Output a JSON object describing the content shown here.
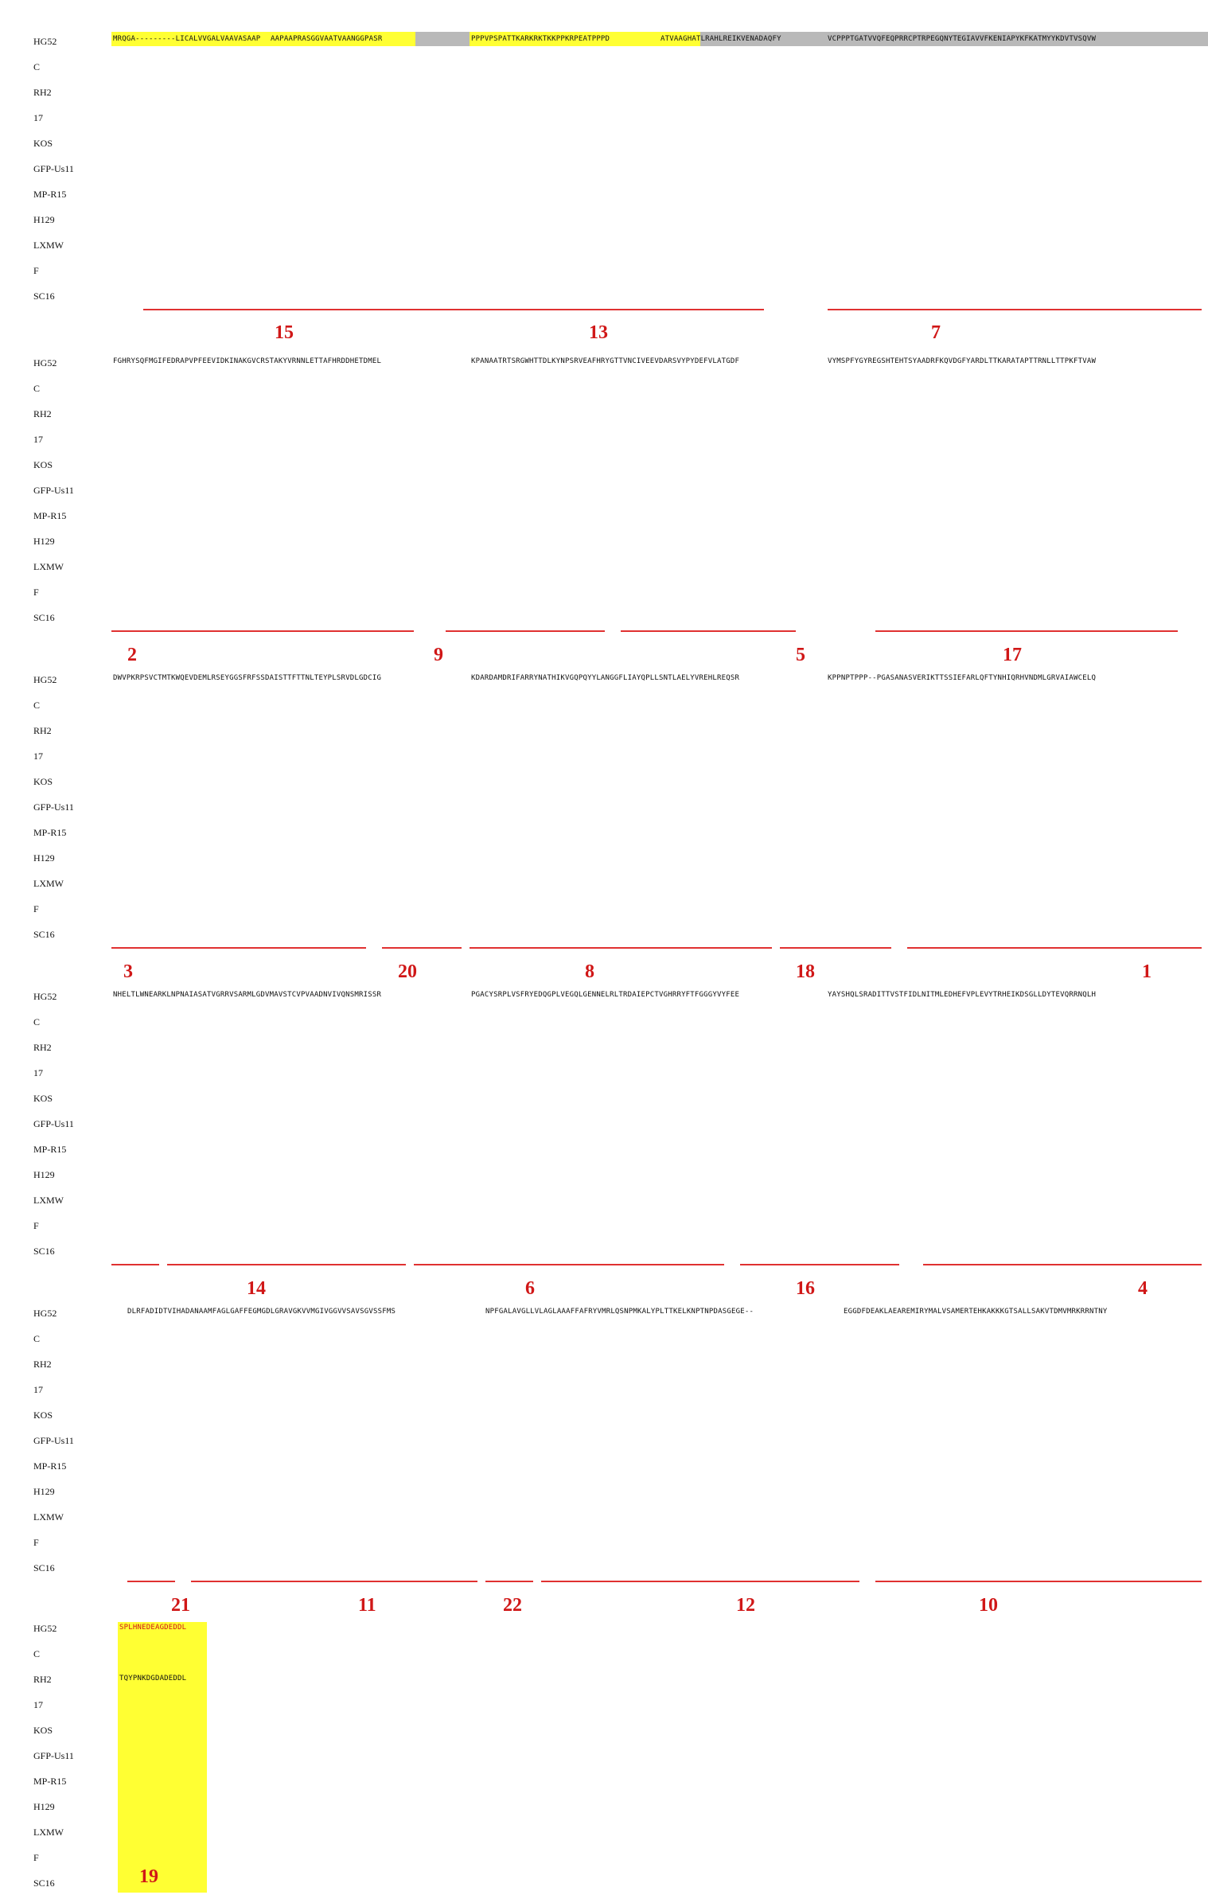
{
  "strains": [
    "HG52",
    "C",
    "RH2",
    "17",
    "KOS",
    "GFP-Us11",
    "MP-R15",
    "H129",
    "LXMW",
    "F",
    "SC16"
  ],
  "blocks": [
    {
      "seq_snippets": [
        "MRQGA---------LICALVVGALVAAVASAAP",
        "AAPAAPRASGGVAATVAANGGPASR",
        "PPPVPSPATTKARKRKTKKPPKRPEATPPPD",
        "ATVAAGHATLRAHLREIKVENADAQFY",
        "VCPPPTGATVVQFEQPRRCPTRPEGQNYTEGIAVVFKENIAPYKFKATMYYKDVTVSQVW"
      ],
      "regions": [
        "15",
        "13",
        "7"
      ]
    },
    {
      "seq_snippets": [
        "FGHRYSQFMGIFEDRAPVPFEEVIDKINAKGVCRSTAKYVRNNLETTAFHRDDHETDMEL",
        "KPANAATRTSRGWHTTDLKYNPSRVEAFHRYGTTVNCIVEEVDARSVYPYDEFVLATGDF",
        "VYMSPFYGYREGSHTEHTSYAADRFKQVDGFYARDLTTKARATAPTTRNLLTTPKFTVAW"
      ],
      "regions": [
        "2",
        "9",
        "5",
        "17"
      ]
    },
    {
      "seq_snippets": [
        "DWVPKRPSVCTMTKWQEVDEMLRSEYGGSFRFSSDAISTTFTTNLTEYPLSRVDLGDCIG",
        "KDARDAMDRIFARRYNATHIKVGQPQYYLANGGFLIAYQPLLSNTLAELYVREHLREQSR",
        "KPPNPTPPP--PGASANASVERIKTTSSIEFARLQFTYNHIQRHVNDMLGRVAIAWCELQ"
      ],
      "regions": [
        "3",
        "20",
        "8",
        "18",
        "1"
      ]
    },
    {
      "seq_snippets": [
        "NHELTLWNEARKLNPNAIASATVGRRVSARMLGDVMAVSTCVPVAADNVIVQNSMRISSR",
        "PGACYSRPLVSFRYEDQGPLVEGQLGENNELRLTRDAIEPCTVGHRRYFTFGGGYVYFEE",
        "YAYSHQLSRADITTVSTFIDLNITMLEDHEFVPLEVYTRHEIKDSGLLDYTEVQRRNQLH"
      ],
      "regions": [
        "14",
        "6",
        "16",
        "4"
      ]
    },
    {
      "seq_snippets": [
        "DLRFADIDTVIHADANAAMFAGLGAFFEGMGDLGRAVGKVVMGIVGGVVSAVSGVSSFMS",
        "NPFGALAVGLLVLAGLAAAFFAFRYVMRLQSNPMKALYPLTTKELKNPTNPDASGEGE--",
        "EGGDFDEAKLAEAREMIRYMALVSAMERTEHKAKKKGTSALLSAKVTDMVMRKRRNTNY"
      ],
      "regions": [
        "21",
        "11",
        "22",
        "12",
        "10"
      ]
    },
    {
      "seq_snippets": [
        "SPLHNEDEAGDEDDL",
        "TQYPNKDGDADEDDL"
      ],
      "regions": [
        "19"
      ]
    }
  ]
}
